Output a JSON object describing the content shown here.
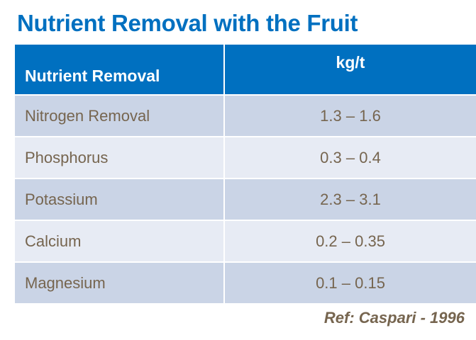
{
  "title": "Nutrient Removal with the Fruit",
  "table": {
    "headers": [
      "Nutrient Removal",
      "kg/t"
    ],
    "rows": [
      {
        "nutrient": "Nitrogen Removal",
        "value": "1.3 – 1.6"
      },
      {
        "nutrient": "Phosphorus",
        "value": "0.3 – 0.4"
      },
      {
        "nutrient": "Potassium",
        "value": "2.3 – 3.1"
      },
      {
        "nutrient": "Calcium",
        "value": "0.2 – 0.35"
      },
      {
        "nutrient": "Magnesium",
        "value": "0.1 – 0.15"
      }
    ]
  },
  "reference": "Ref: Caspari - 1996",
  "colors": {
    "accent": "#0070C0",
    "text": "#76654F",
    "row_dark": "#CAD4E6",
    "row_light": "#E7EBF4"
  }
}
